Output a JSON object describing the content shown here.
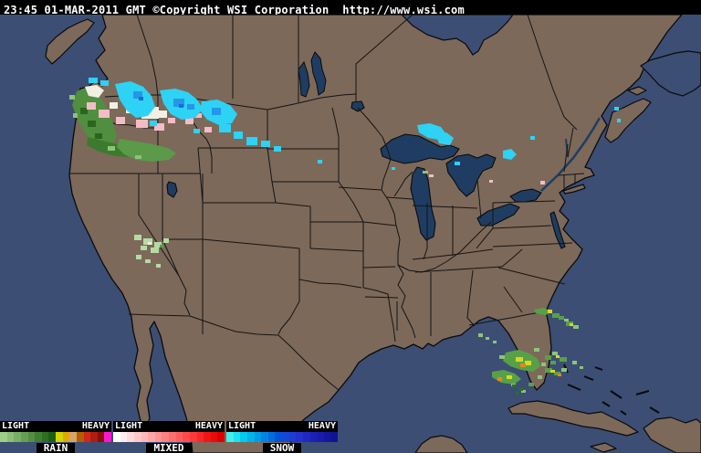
{
  "header": {
    "text": "23:45 01-MAR-2011 GMT ©Copyright WSI Corporation  http://www.wsi.com"
  },
  "legend": {
    "sections": [
      {
        "label": "RAIN",
        "light": "LIGHT",
        "heavy": "HEAVY",
        "colors": [
          "#9ccf8a",
          "#8abf78",
          "#77af66",
          "#649f54",
          "#528f42",
          "#407f31",
          "#2e6f21",
          "#1c5f12",
          "#d4d400",
          "#e0a800",
          "#d8a468",
          "#b85c00",
          "#d02818",
          "#b01c10",
          "#8c0e0c",
          "#f818d0"
        ]
      },
      {
        "label": "MIXED",
        "light": "LIGHT",
        "heavy": "HEAVY",
        "colors": [
          "#ffffff",
          "#ffeded",
          "#ffdbdb",
          "#ffc9c9",
          "#ffb7b7",
          "#ffa5a5",
          "#ff9393",
          "#ff8181",
          "#ff6f6f",
          "#ff5d5d",
          "#ff4b4b",
          "#ff3939",
          "#fb2727",
          "#f31515",
          "#ea0b0b",
          "#e00000"
        ]
      },
      {
        "label": "SNOW",
        "light": "LIGHT",
        "heavy": "HEAVY",
        "colors": [
          "#40f0f0",
          "#20e0f0",
          "#00ccf0",
          "#00b4ec",
          "#009ce8",
          "#0084e4",
          "#006ce0",
          "#0054dc",
          "#1448d8",
          "#1c3cd4",
          "#2430d0",
          "#2028c4",
          "#1c20b8",
          "#181cac",
          "#1418a0",
          "#101494"
        ]
      }
    ]
  },
  "map": {
    "colors": {
      "land": "#7c695a",
      "ocean": "#3c4e73",
      "lakes": "#1f3d63",
      "borders": "#0a0a0a",
      "rain_light": "#8cc47a",
      "rain_moderate": "#58a048",
      "rain_heavy_yellow": "#d8d820",
      "rain_heavy_orange": "#e08820",
      "mixed_pink": "#f4bcc6",
      "snow_cyan": "#2ed2f5",
      "snow_blue": "#2596e8"
    }
  }
}
